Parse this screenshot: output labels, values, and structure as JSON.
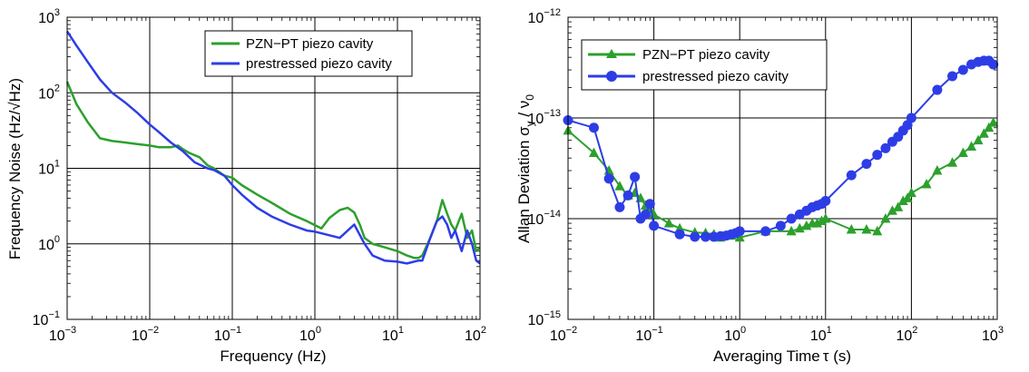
{
  "colors": {
    "green": "#2ca02c",
    "blue": "#2d3de6"
  },
  "chart_data": [
    {
      "type": "line",
      "title": "",
      "xlabel": "Frequency (Hz)",
      "ylabel": "Frequency Noise (Hz/√Hz)",
      "xscale": "log",
      "yscale": "log",
      "xlim": [
        0.001,
        100
      ],
      "ylim": [
        0.1,
        1000
      ],
      "grid": true,
      "legend_position": "top-center",
      "xticks": [
        {
          "base": "10",
          "exp": "−3"
        },
        {
          "base": "10",
          "exp": "−2"
        },
        {
          "base": "10",
          "exp": "−1"
        },
        {
          "base": "10",
          "exp": "0"
        },
        {
          "base": "10",
          "exp": "1"
        },
        {
          "base": "10",
          "exp": "2"
        }
      ],
      "yticks": [
        {
          "base": "10",
          "exp": "−1"
        },
        {
          "base": "10",
          "exp": "0"
        },
        {
          "base": "10",
          "exp": "1"
        },
        {
          "base": "10",
          "exp": "2"
        },
        {
          "base": "10",
          "exp": "3"
        }
      ],
      "series": [
        {
          "name": "PZN−PT piezo cavity",
          "color": "green",
          "x": [
            0.001,
            0.0013,
            0.0018,
            0.0025,
            0.0035,
            0.005,
            0.007,
            0.01,
            0.013,
            0.018,
            0.022,
            0.025,
            0.03,
            0.04,
            0.05,
            0.06,
            0.08,
            0.1,
            0.13,
            0.2,
            0.3,
            0.5,
            0.8,
            1.2,
            1.5,
            2,
            2.5,
            3,
            3.5,
            4,
            5,
            7,
            10,
            13,
            16,
            18,
            20,
            25,
            30,
            35,
            40,
            45,
            50,
            60,
            70,
            80,
            90,
            100
          ],
          "y": [
            140,
            70,
            40,
            25,
            23,
            22,
            21,
            20,
            19,
            19,
            20,
            18,
            16,
            14,
            11,
            10,
            8,
            7.5,
            6,
            4.5,
            3.5,
            2.5,
            2.0,
            1.6,
            2.2,
            2.8,
            3.0,
            2.6,
            1.8,
            1.2,
            1.0,
            0.9,
            0.8,
            0.7,
            0.65,
            0.65,
            0.7,
            1.2,
            2.0,
            3.8,
            2.5,
            1.8,
            1.5,
            2.5,
            1.2,
            1.5,
            0.8,
            0.9
          ]
        },
        {
          "name": "prestressed piezo cavity",
          "color": "blue",
          "x": [
            0.001,
            0.0013,
            0.0018,
            0.0025,
            0.0035,
            0.005,
            0.007,
            0.01,
            0.013,
            0.018,
            0.025,
            0.035,
            0.05,
            0.06,
            0.08,
            0.1,
            0.13,
            0.2,
            0.3,
            0.5,
            0.8,
            1,
            1.5,
            2,
            2.5,
            3,
            4,
            5,
            7,
            10,
            13,
            18,
            20,
            25,
            30,
            35,
            40,
            45,
            50,
            60,
            70,
            80,
            90,
            100
          ],
          "y": [
            650,
            420,
            250,
            150,
            100,
            75,
            55,
            38,
            30,
            22,
            17,
            12,
            10,
            9.5,
            8,
            6,
            4.5,
            3.0,
            2.3,
            1.8,
            1.5,
            1.45,
            1.3,
            1.2,
            1.5,
            1.8,
            1.0,
            0.7,
            0.6,
            0.58,
            0.55,
            0.6,
            0.6,
            1.2,
            2.0,
            2.3,
            1.8,
            1.2,
            1.5,
            0.8,
            1.5,
            1.0,
            0.6,
            0.55
          ]
        }
      ]
    },
    {
      "type": "line",
      "title": "",
      "xlabel_main": "Averaging Time",
      "xlabel_sym": "τ",
      "xlabel_unit": " (s)",
      "ylabel_main": "Allan Deviation ",
      "ylabel_sym1": "σ",
      "ylabel_sub1": "y",
      "ylabel_mid": " / ",
      "ylabel_sym2": "ν",
      "ylabel_sub2": "0",
      "xscale": "log",
      "yscale": "log",
      "xlim": [
        0.01,
        1000
      ],
      "ylim": [
        1e-15,
        1e-12
      ],
      "grid": true,
      "legend_position": "top-left",
      "xticks": [
        {
          "base": "10",
          "exp": "−2"
        },
        {
          "base": "10",
          "exp": "−1"
        },
        {
          "base": "10",
          "exp": "0"
        },
        {
          "base": "10",
          "exp": "1"
        },
        {
          "base": "10",
          "exp": "2"
        },
        {
          "base": "10",
          "exp": "3"
        }
      ],
      "yticks": [
        {
          "base": "10",
          "exp": "−15"
        },
        {
          "base": "10",
          "exp": "−14"
        },
        {
          "base": "10",
          "exp": "−13"
        },
        {
          "base": "10",
          "exp": "−12"
        }
      ],
      "series": [
        {
          "name": "PZN−PT piezo cavity",
          "color": "green",
          "marker": "triangle",
          "x": [
            0.01,
            0.02,
            0.03,
            0.04,
            0.05,
            0.06,
            0.07,
            0.08,
            0.09,
            0.1,
            0.15,
            0.2,
            0.3,
            0.4,
            0.5,
            0.6,
            0.7,
            0.8,
            1,
            2,
            4,
            5,
            6,
            7,
            8,
            9,
            10,
            20,
            30,
            40,
            50,
            60,
            70,
            80,
            90,
            100,
            150,
            200,
            300,
            400,
            500,
            600,
            700,
            800,
            900
          ],
          "y": [
            7.5e-14,
            4.5e-14,
            3e-14,
            2.1e-14,
            1.7e-14,
            1.8e-14,
            1.6e-14,
            1.35e-14,
            1.25e-14,
            1.1e-14,
            9e-15,
            8e-15,
            7.3e-15,
            7.2e-15,
            7e-15,
            6.5e-15,
            6.8e-15,
            6.8e-15,
            6.5e-15,
            7.5e-15,
            7.5e-15,
            8e-15,
            8.5e-15,
            9e-15,
            9e-15,
            9.5e-15,
            1e-14,
            7.8e-15,
            7.8e-15,
            7.5e-15,
            1e-14,
            1.2e-14,
            1.3e-14,
            1.5e-14,
            1.6e-14,
            1.8e-14,
            2.2e-14,
            3e-14,
            3.6e-14,
            4.5e-14,
            5.2e-14,
            6e-14,
            7e-14,
            8e-14,
            9e-14
          ]
        },
        {
          "name": "prestressed piezo cavity",
          "color": "blue",
          "marker": "circle",
          "x": [
            0.01,
            0.02,
            0.03,
            0.04,
            0.05,
            0.06,
            0.07,
            0.08,
            0.09,
            0.1,
            0.2,
            0.3,
            0.4,
            0.5,
            0.6,
            0.7,
            0.8,
            0.9,
            1,
            2,
            3,
            4,
            5,
            6,
            7,
            8,
            9,
            10,
            20,
            30,
            40,
            50,
            60,
            70,
            80,
            90,
            100,
            200,
            300,
            400,
            500,
            600,
            700,
            800,
            900
          ],
          "y": [
            9.5e-14,
            8e-14,
            2.5e-14,
            1.3e-14,
            1.7e-14,
            2.6e-14,
            1e-14,
            1.1e-14,
            1.4e-14,
            8.5e-15,
            7e-15,
            6.6e-15,
            6.6e-15,
            6.6e-15,
            6.7e-15,
            6.8e-15,
            7e-15,
            7.2e-15,
            7.5e-15,
            7.5e-15,
            8.5e-15,
            1e-14,
            1.1e-14,
            1.2e-14,
            1.3e-14,
            1.35e-14,
            1.4e-14,
            1.5e-14,
            2.7e-14,
            3.5e-14,
            4.3e-14,
            5e-14,
            5.8e-14,
            6.5e-14,
            7.5e-14,
            8.5e-14,
            1e-13,
            1.9e-13,
            2.6e-13,
            3e-13,
            3.4e-13,
            3.6e-13,
            3.7e-13,
            3.7e-13,
            3.4e-13
          ]
        }
      ]
    }
  ]
}
